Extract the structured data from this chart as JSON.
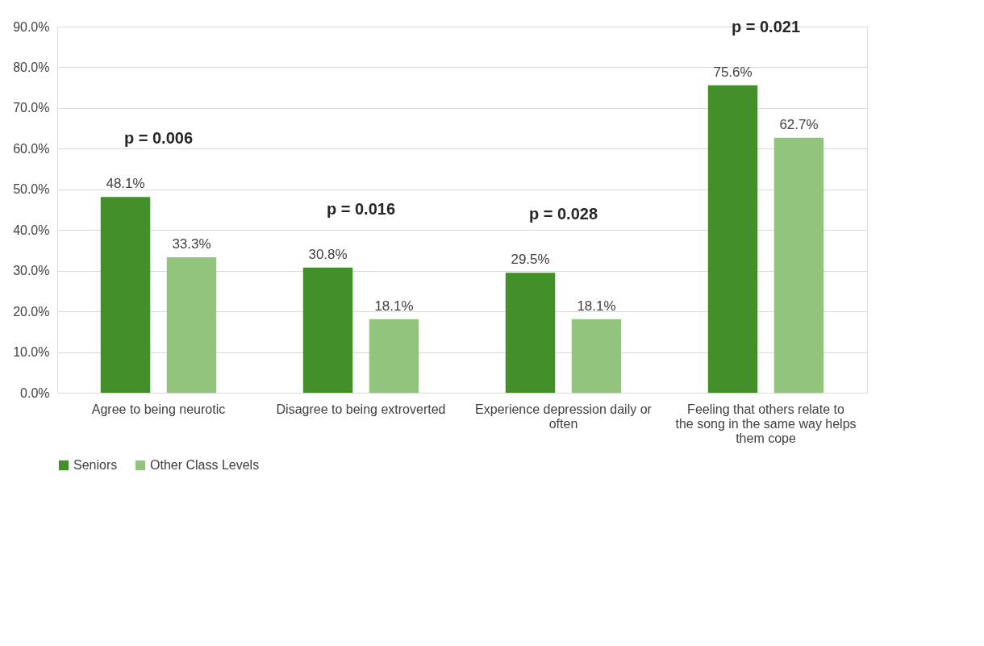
{
  "chart_data": {
    "type": "bar",
    "categories": [
      "Agree to being neurotic",
      "Disagree to being extroverted",
      "Experience depression daily or often",
      "Feeling that others relate to the song in the same way helps them cope"
    ],
    "series": [
      {
        "name": "Seniors",
        "color": "#43902a",
        "values": [
          48.1,
          30.8,
          29.5,
          75.6
        ],
        "value_labels": [
          "48.1%",
          "30.8%",
          "29.5%",
          "75.6%"
        ]
      },
      {
        "name": "Other Class Levels",
        "color": "#93c47d",
        "values": [
          33.3,
          18.1,
          18.1,
          62.7
        ],
        "value_labels": [
          "33.3%",
          "18.1%",
          "18.1%",
          "62.7%"
        ]
      }
    ],
    "ylim": [
      0,
      90
    ],
    "yticks": [
      {
        "value": 0,
        "label": "0.0%"
      },
      {
        "value": 10,
        "label": "10.0%"
      },
      {
        "value": 20,
        "label": "20.0%"
      },
      {
        "value": 30,
        "label": "30.0%"
      },
      {
        "value": 40,
        "label": "40.0%"
      },
      {
        "value": 50,
        "label": "50.0%"
      },
      {
        "value": 60,
        "label": "60.0%"
      },
      {
        "value": 70,
        "label": "70.0%"
      },
      {
        "value": 80,
        "label": "80.0%"
      },
      {
        "value": 90,
        "label": "90.0%"
      }
    ],
    "annotations": [
      "p = 0.006",
      "p = 0.016",
      "p = 0.028",
      "p = 0.021"
    ],
    "grid": "y",
    "legend": "bottom"
  }
}
